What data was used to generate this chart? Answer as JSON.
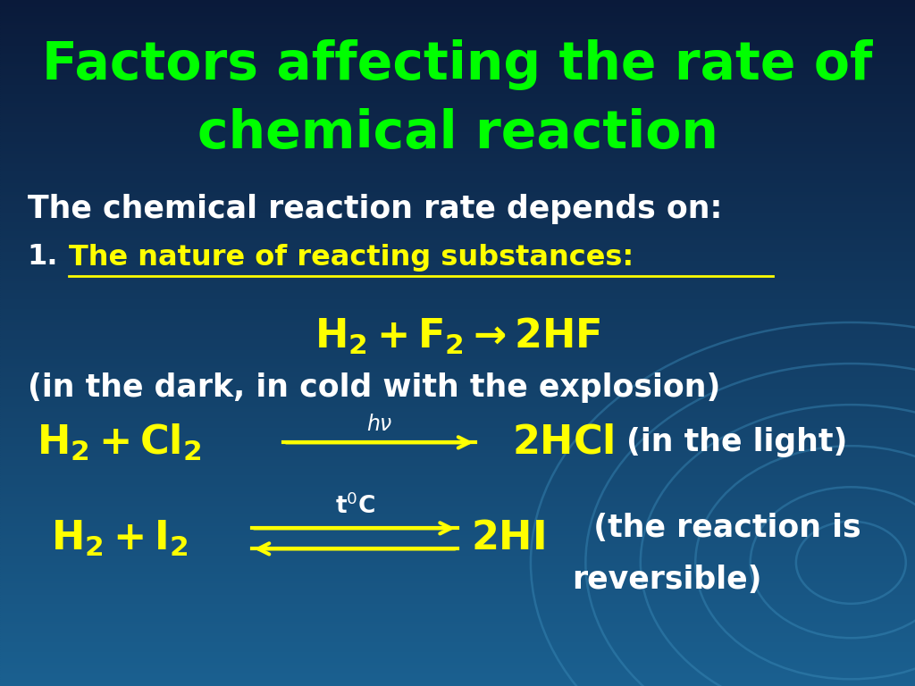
{
  "title_line1": "Factors affecting the rate of",
  "title_line2": "chemical reaction",
  "title_color": "#00ff00",
  "subtitle": "The chemical reaction rate depends on:",
  "subtitle_color": "#ffffff",
  "item1_num": "1.",
  "item1_text": "The nature of reacting substances:",
  "item1_color": "#ffff00",
  "eq1_color": "#ffff00",
  "eq1_note": "(in the dark, in cold with the explosion)",
  "eq1_note_color": "#ffffff",
  "eq2_color": "#ffff00",
  "eq2_note_color": "#ffffff",
  "eq3_color": "#ffff00",
  "eq3_note_color": "#ffffff",
  "bg_color_top": "#0a1a3a",
  "bg_color_bottom": "#1a6090",
  "figsize": [
    10.24,
    7.68
  ],
  "dpi": 100
}
